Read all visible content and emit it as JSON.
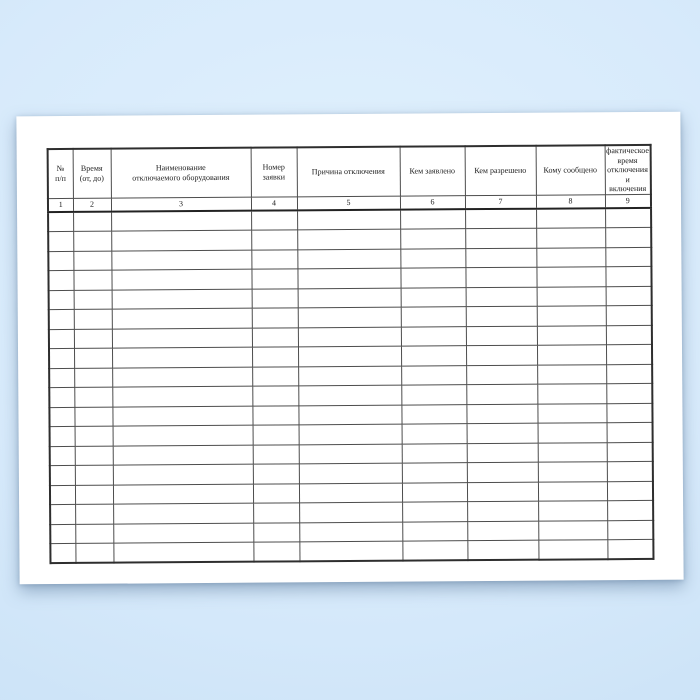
{
  "page": {
    "background_center_color": "#e1f1fd",
    "background_edge_color": "#c6dff5",
    "paper_color": "#ffffff"
  },
  "table": {
    "grid_color": "#4d4d4d",
    "outer_border_color": "#2e2e2e",
    "text_color": "#1c1c1c",
    "columns": [
      {
        "number": "1",
        "label_lines": [
          "№",
          "п/п"
        ]
      },
      {
        "number": "2",
        "label_lines": [
          "Время",
          "(от, до)"
        ]
      },
      {
        "number": "3",
        "label_lines": [
          "Наименование",
          "отключаемого оборудования"
        ]
      },
      {
        "number": "4",
        "label_lines": [
          "Номер",
          "заявки"
        ]
      },
      {
        "number": "5",
        "label_lines": [
          "Причина отключения"
        ]
      },
      {
        "number": "6",
        "label_lines": [
          "Кем заявлено"
        ]
      },
      {
        "number": "7",
        "label_lines": [
          "Кем разрешено"
        ]
      },
      {
        "number": "8",
        "label_lines": [
          "Кому сообщено"
        ]
      },
      {
        "number": "9",
        "label_lines": [
          "фактическое",
          "время",
          "отключения",
          "и включения"
        ]
      }
    ],
    "empty_row_count": 18,
    "cell_values_note": ""
  }
}
